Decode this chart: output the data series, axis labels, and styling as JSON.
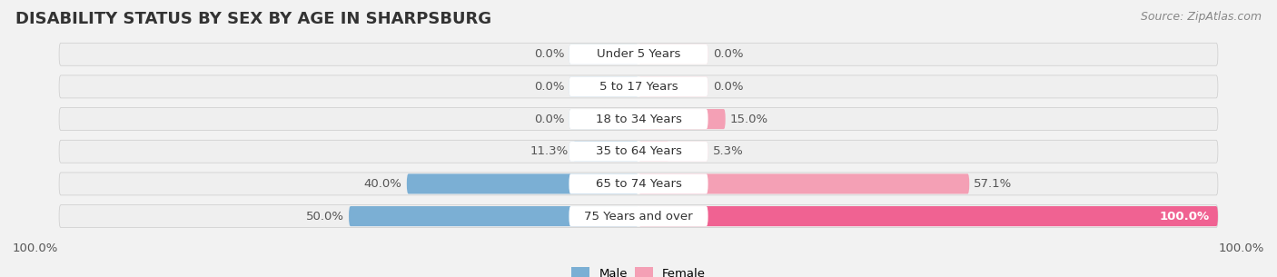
{
  "title": "DISABILITY STATUS BY SEX BY AGE IN SHARPSBURG",
  "source": "Source: ZipAtlas.com",
  "categories": [
    "Under 5 Years",
    "5 to 17 Years",
    "18 to 34 Years",
    "35 to 64 Years",
    "65 to 74 Years",
    "75 Years and over"
  ],
  "male_values": [
    0.0,
    0.0,
    0.0,
    11.3,
    40.0,
    50.0
  ],
  "female_values": [
    0.0,
    0.0,
    15.0,
    5.3,
    57.1,
    100.0
  ],
  "male_color": "#7bafd4",
  "female_color": "#f4a0b5",
  "female_color_100": "#f06292",
  "bar_height": 0.62,
  "background_color": "#f2f2f2",
  "bar_bg_color": "#e4e4e4",
  "row_bg_color": "#ebebeb",
  "title_fontsize": 13,
  "label_fontsize": 9.5,
  "category_fontsize": 9.5,
  "source_fontsize": 9
}
